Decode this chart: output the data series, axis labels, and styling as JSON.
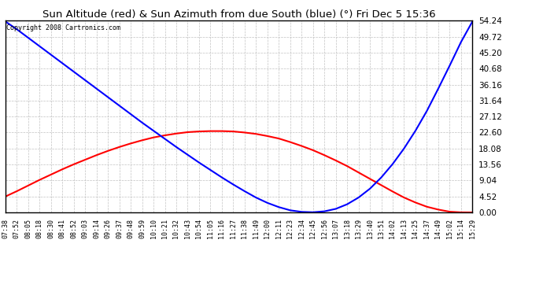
{
  "title": "Sun Altitude (red) & Sun Azimuth from due South (blue) (°) Fri Dec 5 15:36",
  "copyright": "Copyright 2008 Cartronics.com",
  "ymin": 0.0,
  "ymax": 54.24,
  "ytick_step": 4.52,
  "bg_color": "#ffffff",
  "grid_color": "#bbbbbb",
  "time_labels": [
    "07:38",
    "07:52",
    "08:05",
    "08:18",
    "08:30",
    "08:41",
    "08:52",
    "09:03",
    "09:14",
    "09:26",
    "09:37",
    "09:48",
    "09:59",
    "10:10",
    "10:21",
    "10:32",
    "10:43",
    "10:54",
    "11:05",
    "11:16",
    "11:27",
    "11:38",
    "11:49",
    "12:00",
    "12:11",
    "12:23",
    "12:34",
    "12:45",
    "12:56",
    "13:07",
    "13:18",
    "13:29",
    "13:40",
    "13:51",
    "14:02",
    "14:13",
    "14:25",
    "14:37",
    "14:49",
    "15:02",
    "15:14",
    "15:29"
  ],
  "red_values": [
    4.5,
    6.0,
    7.6,
    9.2,
    10.7,
    12.2,
    13.6,
    14.9,
    16.2,
    17.4,
    18.5,
    19.5,
    20.4,
    21.2,
    21.8,
    22.3,
    22.7,
    22.9,
    23.0,
    23.0,
    22.9,
    22.6,
    22.2,
    21.6,
    20.9,
    19.9,
    18.8,
    17.6,
    16.2,
    14.7,
    13.1,
    11.3,
    9.5,
    7.7,
    5.9,
    4.2,
    2.8,
    1.6,
    0.8,
    0.2,
    0.02,
    0.0
  ],
  "blue_values": [
    54.0,
    51.8,
    49.4,
    47.0,
    44.6,
    42.2,
    39.8,
    37.4,
    35.0,
    32.6,
    30.2,
    27.8,
    25.4,
    23.1,
    20.8,
    18.5,
    16.3,
    14.1,
    12.0,
    9.9,
    7.9,
    6.0,
    4.2,
    2.7,
    1.5,
    0.6,
    0.15,
    0.05,
    0.3,
    1.0,
    2.3,
    4.2,
    6.7,
    9.9,
    13.7,
    18.1,
    23.1,
    28.7,
    35.0,
    41.5,
    48.2,
    54.0
  ]
}
